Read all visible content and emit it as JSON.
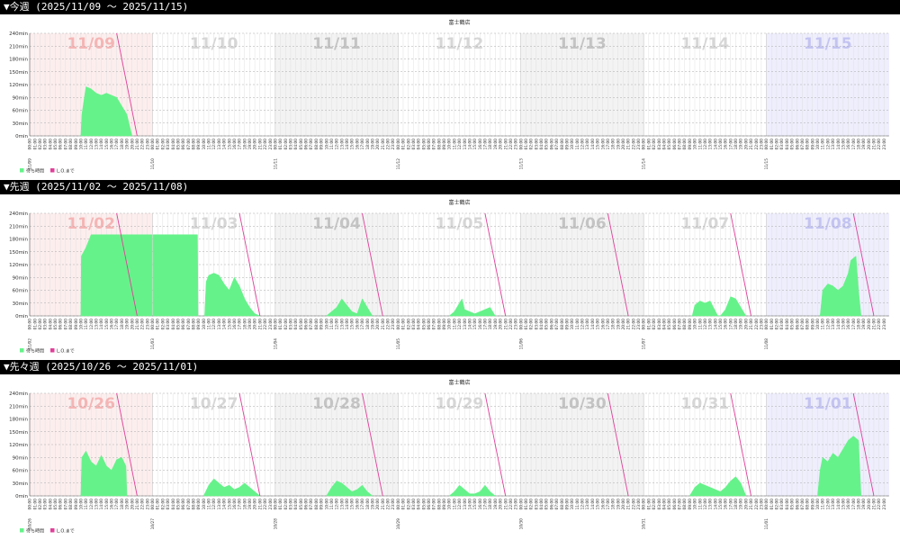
{
  "headings": [
    "▼今週 (2025/11/09 〜 2025/11/15)",
    "▼先週 (2025/11/02 〜 2025/11/08)",
    "▼先々週 (2025/10/26 〜 2025/11/01)"
  ],
  "chart_data": [
    {
      "type": "area",
      "title": "富士鶴店",
      "days": [
        "11/09",
        "11/10",
        "11/11",
        "11/12",
        "11/13",
        "11/14",
        "11/15"
      ],
      "hours": [
        "00:00",
        "01:00",
        "02:00",
        "03:00",
        "04:00",
        "05:00",
        "06:00",
        "07:00",
        "08:00",
        "09:00",
        "10:00",
        "11:00",
        "12:00",
        "13:00",
        "14:00",
        "15:00",
        "16:00",
        "17:00",
        "18:00",
        "19:00",
        "20:00",
        "21:00",
        "22:00",
        "23:00"
      ],
      "band_colors": [
        "#fdeeee",
        "#ffffff",
        "#f3f3f3",
        "#ffffff",
        "#f3f3f3",
        "#ffffff",
        "#eeeefd"
      ],
      "day_label_colors": [
        "#f5b5b5",
        "#d6d6d6",
        "#c4c4c4",
        "#d6d6d6",
        "#c4c4c4",
        "#d6d6d6",
        "#c4c4f2"
      ],
      "xlim": [
        0,
        168
      ],
      "ylim": [
        0,
        240
      ],
      "yticks": [
        {
          "value": 0,
          "label": "0min"
        },
        {
          "value": 30,
          "label": "30min"
        },
        {
          "value": 60,
          "label": "60min"
        },
        {
          "value": 90,
          "label": "90min"
        },
        {
          "value": 120,
          "label": "120min"
        },
        {
          "value": 150,
          "label": "150min"
        },
        {
          "value": 180,
          "label": "180min"
        },
        {
          "value": 210,
          "label": "210min"
        },
        {
          "value": 240,
          "label": "240min"
        }
      ],
      "grid": true,
      "series": [
        {
          "name": "待ち時間",
          "type": "area",
          "color": "#66f28a",
          "x": [
            10,
            10.2,
            11,
            12,
            13,
            14,
            15,
            16,
            17,
            18,
            19,
            20
          ],
          "values": [
            0,
            50,
            115,
            110,
            100,
            95,
            100,
            95,
            90,
            70,
            50,
            0
          ]
        },
        {
          "name": "L.O.まで",
          "type": "line",
          "color": "#e0409a",
          "x": [
            17,
            21
          ],
          "values": [
            240,
            0
          ]
        }
      ]
    },
    {
      "type": "area",
      "title": "富士鶴店",
      "days": [
        "11/02",
        "11/03",
        "11/04",
        "11/05",
        "11/06",
        "11/07",
        "11/08"
      ],
      "hours": [
        "00:00",
        "01:00",
        "02:00",
        "03:00",
        "04:00",
        "05:00",
        "06:00",
        "07:00",
        "08:00",
        "09:00",
        "10:00",
        "11:00",
        "12:00",
        "13:00",
        "14:00",
        "15:00",
        "16:00",
        "17:00",
        "18:00",
        "19:00",
        "20:00",
        "21:00",
        "22:00",
        "23:00"
      ],
      "band_colors": [
        "#fdeeee",
        "#ffffff",
        "#f3f3f3",
        "#ffffff",
        "#f3f3f3",
        "#ffffff",
        "#eeeefd"
      ],
      "day_label_colors": [
        "#f5b5b5",
        "#d6d6d6",
        "#c4c4c4",
        "#d6d6d6",
        "#c4c4c4",
        "#d6d6d6",
        "#c4c4f2"
      ],
      "xlim": [
        0,
        168
      ],
      "ylim": [
        0,
        240
      ],
      "yticks": [
        {
          "value": 0,
          "label": "0min"
        },
        {
          "value": 30,
          "label": "30min"
        },
        {
          "value": 60,
          "label": "60min"
        },
        {
          "value": 90,
          "label": "90min"
        },
        {
          "value": 120,
          "label": "120min"
        },
        {
          "value": 150,
          "label": "150min"
        },
        {
          "value": 180,
          "label": "180min"
        },
        {
          "value": 210,
          "label": "210min"
        },
        {
          "value": 240,
          "label": "240min"
        }
      ],
      "grid": true,
      "series": [
        {
          "name": "待ち時間",
          "type": "area",
          "color": "#66f28a",
          "x": [
            10,
            10.1,
            11,
            11.5,
            12,
            23.9,
            24,
            24.1,
            32.8,
            32.9,
            33.5,
            34.2,
            34.5,
            35,
            36,
            37,
            38,
            39,
            40,
            41,
            42,
            43,
            44,
            45,
            46,
            58,
            59,
            60,
            61,
            62,
            63,
            64,
            65,
            66,
            67,
            70,
            82,
            83,
            84.5,
            85,
            86,
            87,
            88,
            89,
            90,
            91,
            100,
            129.5,
            130,
            131,
            132,
            133,
            134.5,
            135,
            136,
            137,
            138,
            139,
            140,
            150,
            154.5,
            155,
            156,
            157,
            158,
            159,
            160,
            160.5,
            161.5,
            162,
            162.5
          ],
          "values": [
            0,
            140,
            160,
            175,
            190,
            190,
            null,
            190,
            190,
            0,
            null,
            0,
            80,
            95,
            100,
            95,
            75,
            60,
            90,
            70,
            40,
            20,
            5,
            0,
            null,
            0,
            10,
            20,
            40,
            25,
            10,
            5,
            40,
            20,
            0,
            null,
            0,
            10,
            40,
            15,
            10,
            5,
            10,
            15,
            20,
            0,
            null,
            0,
            25,
            35,
            30,
            35,
            0,
            0,
            15,
            45,
            40,
            20,
            0,
            null,
            0,
            60,
            75,
            70,
            60,
            70,
            100,
            130,
            140,
            60,
            0
          ]
        },
        {
          "name": "L.O.まで",
          "type": "line",
          "color": "#e0409a",
          "x": [
            17,
            21,
            22,
            41,
            45,
            46,
            65,
            69,
            70,
            89,
            93,
            94,
            113,
            117,
            118,
            137,
            141,
            142,
            161,
            165
          ],
          "values": [
            240,
            0,
            null,
            240,
            0,
            null,
            240,
            0,
            null,
            240,
            0,
            null,
            240,
            0,
            null,
            240,
            0,
            null,
            240,
            0
          ]
        }
      ]
    },
    {
      "type": "area",
      "title": "富士鶴店",
      "days": [
        "10/26",
        "10/27",
        "10/28",
        "10/29",
        "10/30",
        "10/31",
        "11/01"
      ],
      "hours": [
        "00:00",
        "01:00",
        "02:00",
        "03:00",
        "04:00",
        "05:00",
        "06:00",
        "07:00",
        "08:00",
        "09:00",
        "10:00",
        "11:00",
        "12:00",
        "13:00",
        "14:00",
        "15:00",
        "16:00",
        "17:00",
        "18:00",
        "19:00",
        "20:00",
        "21:00",
        "22:00",
        "23:00"
      ],
      "band_colors": [
        "#fdeeee",
        "#ffffff",
        "#f3f3f3",
        "#ffffff",
        "#f3f3f3",
        "#ffffff",
        "#eeeefd"
      ],
      "day_label_colors": [
        "#f5b5b5",
        "#d6d6d6",
        "#c4c4c4",
        "#d6d6d6",
        "#c4c4c4",
        "#d6d6d6",
        "#c4c4f2"
      ],
      "xlim": [
        0,
        168
      ],
      "ylim": [
        0,
        240
      ],
      "yticks": [
        {
          "value": 0,
          "label": "0min"
        },
        {
          "value": 30,
          "label": "30min"
        },
        {
          "value": 60,
          "label": "60min"
        },
        {
          "value": 90,
          "label": "90min"
        },
        {
          "value": 120,
          "label": "120min"
        },
        {
          "value": 150,
          "label": "150min"
        },
        {
          "value": 180,
          "label": "180min"
        },
        {
          "value": 210,
          "label": "210min"
        },
        {
          "value": 240,
          "label": "240min"
        }
      ],
      "grid": true,
      "series": [
        {
          "name": "待ち時間",
          "type": "area",
          "color": "#66f28a",
          "x": [
            10,
            10.2,
            11,
            12,
            13,
            14,
            15,
            16,
            17,
            18,
            18.8,
            19,
            22,
            34,
            35,
            36,
            37,
            38,
            39,
            40,
            41,
            42,
            43,
            44,
            45,
            50,
            58,
            59,
            60,
            61,
            62,
            63,
            64,
            65,
            66,
            67,
            75,
            82,
            83,
            84,
            85,
            86,
            87,
            88,
            89,
            90,
            91,
            100,
            129,
            130,
            131,
            132,
            133,
            134,
            135,
            136,
            137,
            138,
            139,
            140,
            150,
            154,
            154.5,
            155,
            156,
            157,
            158,
            159,
            160,
            161,
            162,
            162.5
          ],
          "values": [
            0,
            90,
            105,
            80,
            70,
            95,
            70,
            60,
            85,
            90,
            70,
            0,
            null,
            0,
            25,
            40,
            30,
            20,
            25,
            15,
            20,
            30,
            20,
            10,
            0,
            null,
            0,
            20,
            35,
            30,
            20,
            10,
            15,
            25,
            10,
            0,
            null,
            0,
            10,
            25,
            15,
            5,
            5,
            10,
            25,
            10,
            0,
            null,
            0,
            20,
            30,
            25,
            20,
            15,
            10,
            20,
            35,
            45,
            30,
            0,
            null,
            0,
            60,
            90,
            80,
            100,
            90,
            110,
            130,
            140,
            130,
            0
          ]
        },
        {
          "name": "L.O.まで",
          "type": "line",
          "color": "#e0409a",
          "x": [
            17,
            21,
            22,
            41,
            45,
            46,
            65,
            69,
            70,
            89,
            93,
            94,
            113,
            117,
            118,
            137,
            141,
            142,
            161,
            165
          ],
          "values": [
            240,
            0,
            null,
            240,
            0,
            null,
            240,
            0,
            null,
            240,
            0,
            null,
            240,
            0,
            null,
            240,
            0,
            null,
            240,
            0
          ]
        }
      ]
    }
  ]
}
